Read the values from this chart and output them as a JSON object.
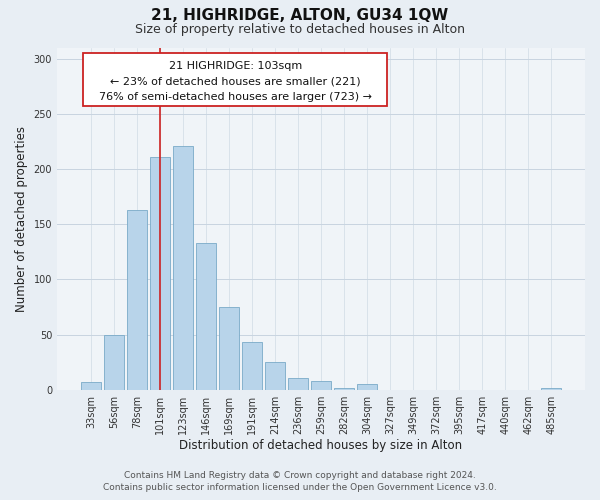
{
  "title": "21, HIGHRIDGE, ALTON, GU34 1QW",
  "subtitle": "Size of property relative to detached houses in Alton",
  "xlabel": "Distribution of detached houses by size in Alton",
  "ylabel": "Number of detached properties",
  "footer_line1": "Contains HM Land Registry data © Crown copyright and database right 2024.",
  "footer_line2": "Contains public sector information licensed under the Open Government Licence v3.0.",
  "annotation_title": "21 HIGHRIDGE: 103sqm",
  "annotation_line2": "← 23% of detached houses are smaller (221)",
  "annotation_line3": "76% of semi-detached houses are larger (723) →",
  "bar_labels": [
    "33sqm",
    "56sqm",
    "78sqm",
    "101sqm",
    "123sqm",
    "146sqm",
    "169sqm",
    "191sqm",
    "214sqm",
    "236sqm",
    "259sqm",
    "282sqm",
    "304sqm",
    "327sqm",
    "349sqm",
    "372sqm",
    "395sqm",
    "417sqm",
    "440sqm",
    "462sqm",
    "485sqm"
  ],
  "bar_values": [
    7,
    50,
    163,
    211,
    221,
    133,
    75,
    43,
    25,
    11,
    8,
    2,
    5,
    0,
    0,
    0,
    0,
    0,
    0,
    0,
    2
  ],
  "bar_color": "#b8d4ea",
  "bar_edge_color": "#7aaac8",
  "highlight_bar_index": 3,
  "highlight_line_color": "#cc2222",
  "ylim": [
    0,
    310
  ],
  "yticks": [
    0,
    50,
    100,
    150,
    200,
    250,
    300
  ],
  "background_color": "#e8eef4",
  "plot_background_color": "#f0f4f8",
  "grid_color": "#c8d4e0",
  "title_fontsize": 11,
  "subtitle_fontsize": 9,
  "axis_label_fontsize": 8.5,
  "tick_fontsize": 7,
  "annotation_fontsize": 8,
  "footer_fontsize": 6.5
}
